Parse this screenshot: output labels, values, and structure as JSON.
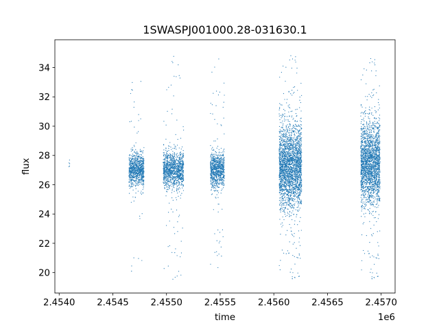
{
  "chart_data": {
    "type": "scatter",
    "title": "1SWASPJ001000.28-031630.1",
    "xlabel": "time",
    "ylabel": "flux",
    "x_offset_label": "1e6",
    "xlim": [
      2.45396,
      2.45713
    ],
    "ylim": [
      18.6,
      35.9
    ],
    "x_ticks": [
      2.454,
      2.4545,
      2.455,
      2.4555,
      2.456,
      2.4565,
      2.457
    ],
    "x_tick_labels": [
      "2.4540",
      "2.4545",
      "2.4550",
      "2.4555",
      "2.4560",
      "2.4565",
      "2.4570"
    ],
    "y_ticks": [
      20,
      22,
      24,
      26,
      28,
      30,
      32,
      34
    ],
    "y_tick_labels": [
      "20",
      "22",
      "24",
      "26",
      "28",
      "30",
      "32",
      "34"
    ],
    "grid": false,
    "legend": "none",
    "color": "#1f77b4",
    "series": [
      {
        "clusters": [
          {
            "x_range": [
              2.45409,
              2.4541
            ],
            "y_center": 27.4,
            "y_spread": 0.3,
            "y_range": [
              27.0,
              27.8
            ],
            "n_points": 6
          },
          {
            "x_range": [
              2.45465,
              2.45479
            ],
            "y_center": 27.0,
            "y_spread": 0.55,
            "y_range": [
              19.6,
              33.4
            ],
            "n_points": 900
          },
          {
            "x_range": [
              2.45497,
              2.45516
            ],
            "y_center": 27.0,
            "y_spread": 0.6,
            "y_range": [
              19.5,
              34.8
            ],
            "n_points": 1200
          },
          {
            "x_range": [
              2.45541,
              2.45554
            ],
            "y_center": 27.0,
            "y_spread": 0.6,
            "y_range": [
              19.5,
              35.0
            ],
            "n_points": 900
          },
          {
            "x_range": [
              2.45605,
              2.45626
            ],
            "y_center": 27.2,
            "y_spread": 1.4,
            "y_range": [
              19.4,
              35.0
            ],
            "n_points": 2600
          },
          {
            "x_range": [
              2.45681,
              2.45699
            ],
            "y_center": 27.4,
            "y_spread": 1.4,
            "y_range": [
              19.4,
              34.8
            ],
            "n_points": 2200
          }
        ]
      }
    ]
  }
}
